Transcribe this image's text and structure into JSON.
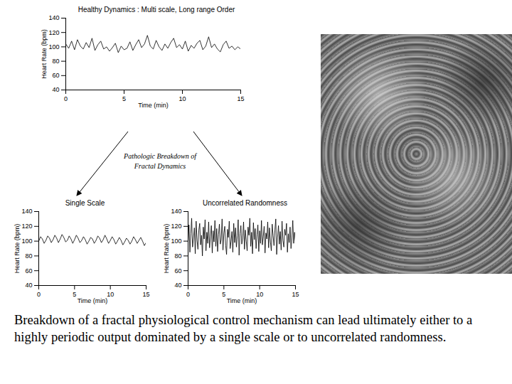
{
  "chart_data": [
    {
      "type": "line",
      "title": "Healthy Dynamics : Multi scale, Long range Order",
      "x_label": "Time (min)",
      "y_label": "Heart Rate (bpm)",
      "x": [
        0,
        0.25,
        0.5,
        0.75,
        1,
        1.25,
        1.5,
        1.75,
        2,
        2.25,
        2.5,
        2.75,
        3,
        3.25,
        3.5,
        3.75,
        4,
        4.25,
        4.5,
        4.75,
        5,
        5.25,
        5.5,
        5.75,
        6,
        6.25,
        6.5,
        6.75,
        7,
        7.25,
        7.5,
        7.75,
        8,
        8.25,
        8.5,
        8.75,
        9,
        9.25,
        9.5,
        9.75,
        10,
        10.25,
        10.5,
        10.75,
        11,
        11.25,
        11.5,
        11.75,
        12,
        12.25,
        12.5,
        12.75,
        13,
        13.25,
        13.5,
        13.75,
        14,
        14.25,
        14.5,
        14.75,
        15
      ],
      "values": [
        104,
        98,
        108,
        96,
        110,
        101,
        97,
        106,
        99,
        112,
        95,
        103,
        108,
        97,
        100,
        94,
        99,
        105,
        92,
        101,
        96,
        98,
        107,
        95,
        103,
        110,
        99,
        104,
        116,
        101,
        97,
        109,
        100,
        95,
        104,
        98,
        106,
        112,
        99,
        103,
        97,
        108,
        94,
        102,
        98,
        105,
        109,
        96,
        101,
        114,
        99,
        104,
        97,
        93,
        103,
        108,
        98,
        101,
        96,
        100,
        97
      ],
      "color": "#000000",
      "xlim": [
        0,
        15
      ],
      "xticks": [
        0,
        5,
        10,
        15
      ],
      "ylim": [
        40,
        140
      ],
      "yticks": [
        40,
        60,
        80,
        100,
        120,
        140
      ]
    },
    {
      "type": "line",
      "title": "Single Scale",
      "x_label": "Time (min)",
      "y_label": "Heart Rate (bpm)",
      "x": [
        0,
        0.25,
        0.5,
        0.75,
        1,
        1.25,
        1.5,
        1.75,
        2,
        2.25,
        2.5,
        2.75,
        3,
        3.25,
        3.5,
        3.75,
        4,
        4.25,
        4.5,
        4.75,
        5,
        5.25,
        5.5,
        5.75,
        6,
        6.25,
        6.5,
        6.75,
        7,
        7.25,
        7.5,
        7.75,
        8,
        8.25,
        8.5,
        8.75,
        9,
        9.25,
        9.5,
        9.75,
        10,
        10.25,
        10.5,
        10.75,
        11,
        11.25,
        11.5,
        11.75,
        12,
        12.25,
        12.5,
        12.75,
        13,
        13.25,
        13.5,
        13.75,
        14,
        14.25,
        14.5,
        14.75,
        15
      ],
      "values": [
        100,
        106,
        103,
        97,
        101,
        107,
        104,
        98,
        102,
        108,
        104,
        98,
        103,
        109,
        105,
        99,
        101,
        107,
        103,
        97,
        102,
        108,
        104,
        98,
        101,
        106,
        102,
        96,
        100,
        105,
        103,
        97,
        101,
        107,
        104,
        98,
        102,
        108,
        103,
        97,
        101,
        106,
        102,
        96,
        100,
        105,
        101,
        95,
        99,
        104,
        101,
        96,
        100,
        106,
        102,
        97,
        101,
        105,
        100,
        94,
        98
      ],
      "color": "#000000",
      "xlim": [
        0,
        15
      ],
      "xticks": [
        0,
        5,
        10,
        15
      ],
      "ylim": [
        40,
        140
      ],
      "yticks": [
        40,
        60,
        80,
        100,
        120,
        140
      ]
    },
    {
      "type": "line",
      "title": "Uncorrelated Randomness",
      "x_label": "Time (min)",
      "y_label": "Heart Rate (bpm)",
      "x": [
        0,
        0.125,
        0.25,
        0.375,
        0.5,
        0.625,
        0.75,
        0.875,
        1,
        1.125,
        1.25,
        1.375,
        1.5,
        1.625,
        1.75,
        1.875,
        2,
        2.125,
        2.25,
        2.375,
        2.5,
        2.625,
        2.75,
        2.875,
        3,
        3.125,
        3.25,
        3.375,
        3.5,
        3.625,
        3.75,
        3.875,
        4,
        4.125,
        4.25,
        4.375,
        4.5,
        4.625,
        4.75,
        4.875,
        5,
        5.125,
        5.25,
        5.375,
        5.5,
        5.625,
        5.75,
        5.875,
        6,
        6.125,
        6.25,
        6.375,
        6.5,
        6.625,
        6.75,
        6.875,
        7,
        7.125,
        7.25,
        7.375,
        7.5,
        7.625,
        7.75,
        7.875,
        8,
        8.125,
        8.25,
        8.375,
        8.5,
        8.625,
        8.75,
        8.875,
        9,
        9.125,
        9.25,
        9.375,
        9.5,
        9.625,
        9.75,
        9.875,
        10,
        10.125,
        10.25,
        10.375,
        10.5,
        10.625,
        10.75,
        10.875,
        11,
        11.125,
        11.25,
        11.375,
        11.5,
        11.625,
        11.75,
        11.875,
        12,
        12.125,
        12.25,
        12.375,
        12.5,
        12.625,
        12.75,
        12.875,
        13,
        13.125,
        13.25,
        13.375,
        13.5,
        13.625,
        13.75,
        13.875,
        14,
        14.125,
        14.25,
        14.375,
        14.5,
        14.625,
        14.75,
        14.875,
        15
      ],
      "values": [
        98,
        122,
        85,
        110,
        131,
        92,
        104,
        118,
        83,
        127,
        101,
        89,
        115,
        124,
        95,
        108,
        80,
        119,
        103,
        129,
        87,
        112,
        97,
        126,
        91,
        106,
        121,
        84,
        114,
        99,
        128,
        93,
        117,
        86,
        109,
        123,
        96,
        102,
        130,
        88,
        111,
        120,
        94,
        82,
        116,
        105,
        127,
        90,
        100,
        113,
        85,
        124,
        98,
        118,
        92,
        107,
        129,
        81,
        110,
        121,
        96,
        104,
        126,
        89,
        115,
        100,
        87,
        119,
        108,
        131,
        93,
        112,
        83,
        125,
        102,
        117,
        90,
        109,
        122,
        86,
        114,
        97,
        128,
        95,
        106,
        120,
        84,
        111,
        103,
        126,
        91,
        118,
        99,
        87,
        123,
        107,
        94,
        115,
        130,
        82,
        105,
        121,
        96,
        113,
        88,
        127,
        101,
        92,
        116,
        108,
        124,
        85,
        110,
        98,
        119,
        90,
        104,
        128,
        97,
        112,
        100
      ],
      "color": "#000000",
      "xlim": [
        0,
        15
      ],
      "xticks": [
        0,
        5,
        10,
        15
      ],
      "ylim": [
        40,
        140
      ],
      "yticks": [
        40,
        60,
        80,
        100,
        120,
        140
      ]
    }
  ],
  "annotation": "Pathologic Breakdown of Fractal Dynamics",
  "caption": "Breakdown of a fractal physiological control mechanism can lead ultimately either to a highly periodic output dominated by a single scale or to uncorrelated randomness."
}
